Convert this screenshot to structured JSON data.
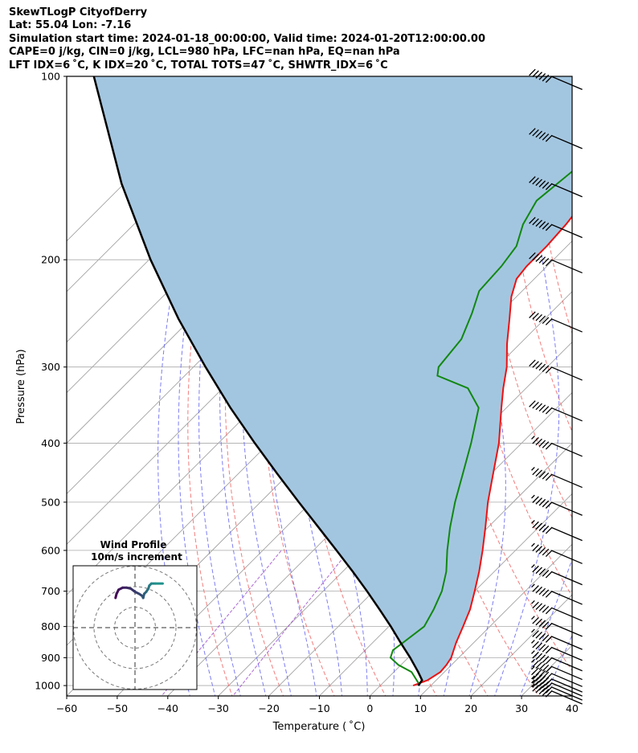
{
  "header": {
    "line1": "SkewTLogP CityofDerry",
    "line2": "Lat: 55.04   Lon: -7.16",
    "line3": "Simulation start time: 2024-01-18_00:00:00, Valid time: 2024-01-20T12:00:00.00",
    "line4": "CAPE=0 j/kg, CIN=0 j/kg, LCL=980 hPa, LFC=nan hPa, EQ=nan hPa",
    "line5": "LFT IDX=6 ˚C, K IDX=20 ˚C, TOTAL TOTS=47 ˚C, SHWTR_IDX=6 ˚C"
  },
  "chart_data": {
    "type": "line",
    "xlabel": "Temperature ( ˚C)",
    "ylabel": "Pressure (hPa)",
    "xlim": [
      -60,
      40
    ],
    "ylim": [
      1040,
      100
    ],
    "yscale": "log",
    "skew": true,
    "x_ticks": [
      "−60",
      "−50",
      "−40",
      "−30",
      "−20",
      "−10",
      "0",
      "10",
      "20",
      "30",
      "40"
    ],
    "y_ticks": [
      1000,
      900,
      800,
      700,
      600,
      500,
      400,
      300,
      200,
      100
    ],
    "grid": true,
    "colors": {
      "temperature": "#ee1111",
      "dewpoint": "#118811",
      "parcel": "#000000",
      "shade": "#a3c6e0",
      "dry_adiabats": "#ee6666",
      "moist_adiabats": "#6666ee",
      "mixing_ratio": "#9944cc",
      "isotherms": "#999999"
    },
    "series": [
      {
        "role": "temperature",
        "points": [
          [
            1000,
            6.5
          ],
          [
            980,
            8.3
          ],
          [
            950,
            9.2
          ],
          [
            925,
            9.0
          ],
          [
            900,
            8.5
          ],
          [
            850,
            6.5
          ],
          [
            800,
            4.7
          ],
          [
            750,
            2.7
          ],
          [
            700,
            0.0
          ],
          [
            650,
            -3.0
          ],
          [
            600,
            -6.5
          ],
          [
            550,
            -10.5
          ],
          [
            500,
            -15.0
          ],
          [
            450,
            -19.5
          ],
          [
            400,
            -24.5
          ],
          [
            350,
            -31.0
          ],
          [
            325,
            -34.5
          ],
          [
            300,
            -38.0
          ],
          [
            275,
            -42.5
          ],
          [
            250,
            -47.0
          ],
          [
            230,
            -51.0
          ],
          [
            215,
            -53.5
          ],
          [
            205,
            -54.0
          ],
          [
            190,
            -54.0
          ],
          [
            175,
            -54.5
          ],
          [
            160,
            -55.5
          ],
          [
            140,
            -57.5
          ],
          [
            120,
            -59.0
          ],
          [
            110,
            -60.0
          ],
          [
            100,
            -61.0
          ]
        ]
      },
      {
        "role": "dewpoint",
        "points": [
          [
            990,
            7.0
          ],
          [
            950,
            3.5
          ],
          [
            925,
            -0.5
          ],
          [
            900,
            -3.5
          ],
          [
            875,
            -4.5
          ],
          [
            850,
            -4.0
          ],
          [
            800,
            -3.0
          ],
          [
            750,
            -4.5
          ],
          [
            700,
            -6.5
          ],
          [
            650,
            -9.5
          ],
          [
            600,
            -13.5
          ],
          [
            550,
            -17.5
          ],
          [
            500,
            -21.5
          ],
          [
            450,
            -25.5
          ],
          [
            400,
            -30.0
          ],
          [
            350,
            -35.5
          ],
          [
            325,
            -41.5
          ],
          [
            310,
            -50.0
          ],
          [
            300,
            -51.5
          ],
          [
            270,
            -52.5
          ],
          [
            245,
            -55.5
          ],
          [
            225,
            -58.5
          ],
          [
            205,
            -59.0
          ],
          [
            190,
            -60.0
          ],
          [
            175,
            -63.0
          ],
          [
            160,
            -65.0
          ],
          [
            140,
            -63.5
          ],
          [
            120,
            -62.5
          ],
          [
            100,
            -62.0
          ]
        ]
      },
      {
        "role": "parcel",
        "points": [
          [
            1000,
            7.5
          ],
          [
            980,
            7.2
          ],
          [
            950,
            4.8
          ],
          [
            900,
            0.4
          ],
          [
            850,
            -4.5
          ],
          [
            800,
            -9.6
          ],
          [
            750,
            -15.2
          ],
          [
            700,
            -21.3
          ],
          [
            650,
            -28.0
          ],
          [
            600,
            -35.4
          ],
          [
            550,
            -43.5
          ],
          [
            500,
            -52.4
          ],
          [
            450,
            -62.1
          ],
          [
            400,
            -72.8
          ],
          [
            350,
            -84.6
          ],
          [
            300,
            -97.6
          ],
          [
            250,
            -112.5
          ],
          [
            200,
            -129.7
          ],
          [
            150,
            -150.5
          ],
          [
            100,
            -177.2
          ]
        ]
      }
    ],
    "wind_barbs": {
      "pressures": [
        1020,
        1005,
        990,
        975,
        955,
        930,
        900,
        865,
        830,
        790,
        745,
        700,
        650,
        600,
        550,
        500,
        450,
        400,
        350,
        300,
        250,
        200,
        175,
        150,
        125,
        100
      ],
      "speed_kt": [
        55,
        55,
        55,
        55,
        55,
        55,
        55,
        55,
        55,
        55,
        55,
        55,
        55,
        55,
        55,
        55,
        55,
        55,
        60,
        60,
        60,
        60,
        60,
        60,
        60,
        60
      ]
    },
    "inset": {
      "title": "Wind Profile",
      "subtitle": "10m/s increment",
      "hodograph": [
        [
          -9.5,
          14.5
        ],
        [
          -9.0,
          16.5
        ],
        [
          -8.0,
          18.5
        ],
        [
          -6.0,
          19.5
        ],
        [
          -4.0,
          19.5
        ],
        [
          -2.0,
          19.0
        ],
        [
          0.0,
          17.5
        ],
        [
          2.0,
          16.5
        ],
        [
          3.5,
          15.5
        ],
        [
          4.0,
          14.5
        ],
        [
          4.5,
          16.5
        ],
        [
          5.5,
          17.5
        ],
        [
          6.5,
          19.0
        ],
        [
          7.0,
          20.5
        ],
        [
          8.0,
          21.5
        ],
        [
          10.0,
          21.5
        ],
        [
          13.5,
          21.5
        ]
      ]
    }
  }
}
